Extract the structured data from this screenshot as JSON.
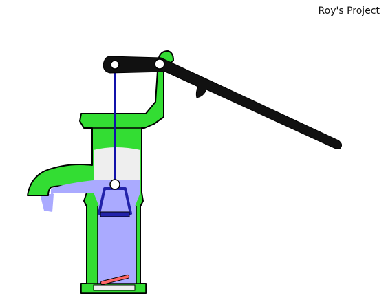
{
  "credit": "Roy's Project",
  "colors": {
    "pump_body": "#33dd33",
    "outline": "#000000",
    "water": "#aaaaff",
    "air": "#eeeeee",
    "piston": "#2222aa",
    "handle": "#111111",
    "rod": "#1111aa",
    "foot_valve": "#ff6666",
    "background": "#ffffff"
  },
  "icons": [
    "pump-handle",
    "pivot-pin",
    "piston-rod",
    "piston",
    "foot-valve",
    "spout",
    "water-stream"
  ]
}
